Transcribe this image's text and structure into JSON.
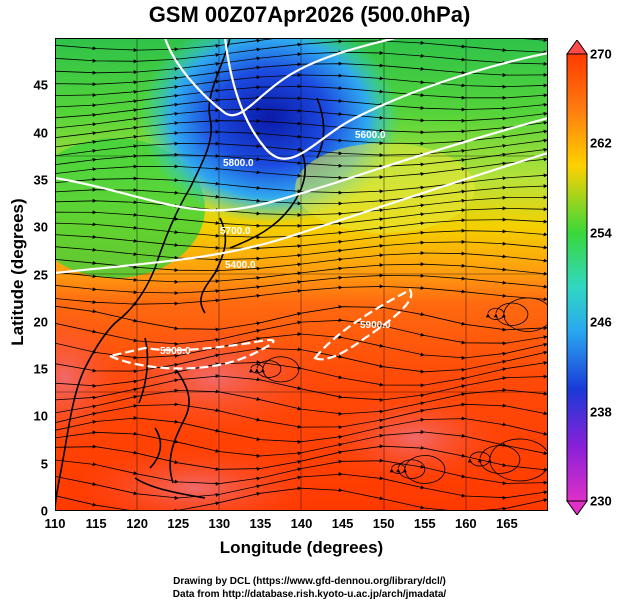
{
  "title": "GSM 00Z07Apr2026 (500.0hPa)",
  "xlabel": "Longitude (degrees)",
  "ylabel": "Latitude  (degrees)",
  "x_ticks": [
    "110",
    "115",
    "120",
    "125",
    "130",
    "135",
    "140",
    "145",
    "150",
    "155",
    "160",
    "165"
  ],
  "y_ticks": [
    "0",
    "5",
    "10",
    "15",
    "20",
    "25",
    "30",
    "35",
    "40",
    "45"
  ],
  "colorbar_ticks": [
    "270",
    "262",
    "254",
    "246",
    "238",
    "230"
  ],
  "contour_labels": [
    "5400.0",
    "5700.0",
    "5600.0",
    "5800.0",
    "5900.0",
    "5900.0"
  ],
  "credit_line1": "Drawing by DCL (https://www.gfd-dennou.org/library/dcl/)",
  "credit_line2": "Data from http://database.rish.kyoto-u.ac.jp/arch/jmadata/",
  "colors": {
    "shade_cold": "#1a2fd0",
    "shade_cool": "#2fd8f0",
    "shade_mid": "#3adf3a",
    "shade_warm": "#f5c800",
    "shade_hot": "#ff3a00",
    "contour": "#ffffff",
    "streamline": "#000000"
  },
  "lon_range": [
    110,
    170
  ],
  "lat_range": [
    0,
    50
  ],
  "colorbar_range": [
    230,
    270
  ]
}
